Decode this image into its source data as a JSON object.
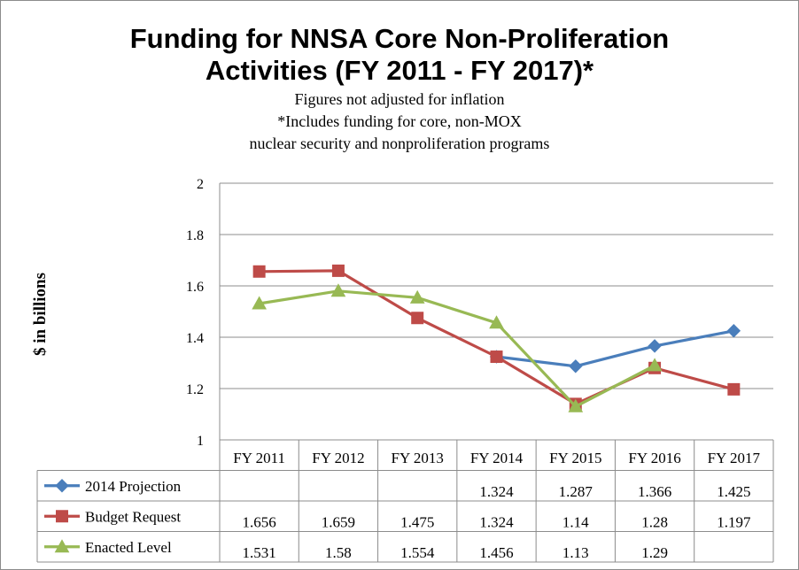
{
  "chart_data": {
    "type": "line",
    "title_line1": "Funding for NNSA Core Non-Proliferation",
    "title_line2": "Activities (FY 2011 - FY 2017)*",
    "subtitle_lines": [
      "Figures not adjusted for inflation",
      "*Includes funding for core, non-MOX",
      "nuclear security and nonproliferation programs"
    ],
    "ylabel": "$ in billions",
    "ylim": [
      1,
      2
    ],
    "yticks": [
      "1",
      "1.2",
      "1.4",
      "1.6",
      "1.8",
      "2"
    ],
    "ytick_values": [
      1,
      1.2,
      1.4,
      1.6,
      1.8,
      2
    ],
    "grid": true,
    "legend": "data-table",
    "categories": [
      "FY 2011",
      "FY 2012",
      "FY 2013",
      "FY 2014",
      "FY 2015",
      "FY 2016",
      "FY 2017"
    ],
    "series": [
      {
        "name": "2014 Projection",
        "color": "#4a7ebb",
        "marker": "diamond",
        "values": [
          null,
          null,
          null,
          1.324,
          1.287,
          1.366,
          1.425
        ],
        "labels": [
          "",
          "",
          "",
          "1.324",
          "1.287",
          "1.366",
          "1.425"
        ]
      },
      {
        "name": "Budget Request",
        "color": "#be4b48",
        "marker": "square",
        "values": [
          1.656,
          1.659,
          1.475,
          1.324,
          1.14,
          1.28,
          1.197
        ],
        "labels": [
          "1.656",
          "1.659",
          "1.475",
          "1.324",
          "1.14",
          "1.28",
          "1.197"
        ]
      },
      {
        "name": "Enacted Level",
        "color": "#98b954",
        "marker": "triangle",
        "values": [
          1.531,
          1.58,
          1.554,
          1.456,
          1.13,
          1.29,
          null
        ],
        "labels": [
          "1.531",
          "1.58",
          "1.554",
          "1.456",
          "1.13",
          "1.29",
          ""
        ]
      }
    ]
  }
}
